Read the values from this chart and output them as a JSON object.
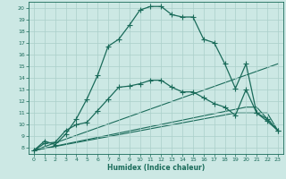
{
  "xlabel": "Humidex (Indice chaleur)",
  "xlim": [
    -0.5,
    23.5
  ],
  "ylim": [
    7.5,
    20.5
  ],
  "yticks": [
    8,
    9,
    10,
    11,
    12,
    13,
    14,
    15,
    16,
    17,
    18,
    19,
    20
  ],
  "xticks": [
    0,
    1,
    2,
    3,
    4,
    5,
    6,
    7,
    8,
    9,
    10,
    11,
    12,
    13,
    14,
    15,
    16,
    17,
    18,
    19,
    20,
    21,
    22,
    23
  ],
  "bg_color": "#cce8e4",
  "grid_color": "#aacfca",
  "line_color": "#1a6b5a",
  "lines": [
    {
      "x": [
        0,
        1,
        2,
        3,
        4,
        5,
        6,
        7,
        8,
        9,
        10,
        11,
        12,
        13,
        14,
        15,
        16,
        17,
        18,
        19,
        20,
        21,
        22,
        23
      ],
      "y": [
        7.8,
        8.6,
        8.3,
        9.2,
        10.5,
        12.2,
        14.2,
        16.7,
        17.3,
        18.5,
        19.8,
        20.1,
        20.1,
        19.4,
        19.2,
        19.2,
        17.3,
        17.0,
        15.2,
        13.1,
        15.2,
        11.0,
        10.5,
        9.5
      ],
      "marker": "+",
      "markersize": 4,
      "linewidth": 0.9
    },
    {
      "x": [
        0,
        1,
        2,
        3,
        4,
        5,
        6,
        7,
        8,
        9,
        10,
        11,
        12,
        13,
        14,
        15,
        16,
        17,
        18,
        19,
        20,
        21,
        22,
        23
      ],
      "y": [
        7.8,
        8.4,
        8.5,
        9.5,
        10.0,
        10.2,
        11.2,
        12.2,
        13.2,
        13.3,
        13.5,
        13.8,
        13.8,
        13.2,
        12.8,
        12.8,
        12.3,
        11.8,
        11.5,
        10.8,
        13.0,
        11.0,
        10.3,
        9.5
      ],
      "marker": "+",
      "markersize": 4,
      "linewidth": 0.9
    },
    {
      "x": [
        0,
        23
      ],
      "y": [
        7.8,
        15.2
      ],
      "marker": null,
      "linewidth": 0.8
    },
    {
      "x": [
        0,
        19,
        20,
        21,
        22,
        23
      ],
      "y": [
        7.8,
        11.0,
        11.0,
        11.0,
        11.0,
        9.5
      ],
      "marker": null,
      "linewidth": 0.8
    },
    {
      "x": [
        0,
        20,
        21,
        22,
        23
      ],
      "y": [
        7.8,
        11.5,
        11.5,
        10.5,
        9.5
      ],
      "marker": null,
      "linewidth": 0.8
    }
  ]
}
